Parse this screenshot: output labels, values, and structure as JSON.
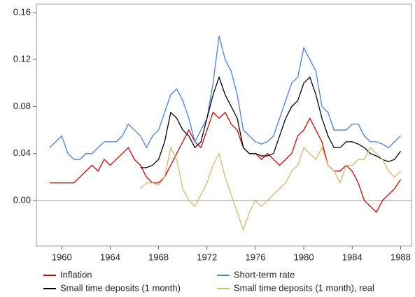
{
  "chart_data": {
    "type": "line",
    "x": [
      1959,
      1959.5,
      1960,
      1960.5,
      1961,
      1961.5,
      1962,
      1962.5,
      1963,
      1963.5,
      1964,
      1964.5,
      1965,
      1965.5,
      1966,
      1966.5,
      1967,
      1967.5,
      1968,
      1968.5,
      1969,
      1969.5,
      1970,
      1970.5,
      1971,
      1971.5,
      1972,
      1972.5,
      1973,
      1973.5,
      1974,
      1974.5,
      1975,
      1975.5,
      1976,
      1976.5,
      1977,
      1977.5,
      1978,
      1978.5,
      1979,
      1979.5,
      1980,
      1980.5,
      1981,
      1981.5,
      1982,
      1982.5,
      1983,
      1983.5,
      1984,
      1984.5,
      1985,
      1985.5,
      1986,
      1986.5,
      1987,
      1987.5,
      1988
    ],
    "series": [
      {
        "name": "Inflation",
        "color": "#cc0000",
        "values": [
          0.015,
          0.015,
          0.015,
          0.015,
          0.015,
          0.02,
          0.025,
          0.03,
          0.025,
          0.035,
          0.03,
          0.035,
          0.04,
          0.045,
          0.035,
          0.03,
          0.02,
          0.015,
          0.015,
          0.02,
          0.03,
          0.04,
          0.05,
          0.06,
          0.05,
          0.045,
          0.06,
          0.075,
          0.07,
          0.075,
          0.065,
          0.06,
          0.045,
          0.04,
          0.04,
          0.035,
          0.04,
          0.035,
          0.03,
          0.035,
          0.04,
          0.055,
          0.06,
          0.07,
          0.06,
          0.05,
          0.03,
          0.025,
          0.025,
          0.03,
          0.025,
          0.015,
          0.0,
          -0.005,
          -0.01,
          0.0,
          0.005,
          0.01,
          0.018
        ]
      },
      {
        "name": "Short-term rate",
        "color": "#4a7fe0",
        "values": [
          0.045,
          0.05,
          0.055,
          0.04,
          0.035,
          0.035,
          0.04,
          0.04,
          0.045,
          0.05,
          0.05,
          0.05,
          0.055,
          0.065,
          0.06,
          0.055,
          0.045,
          0.055,
          0.06,
          0.075,
          0.09,
          0.095,
          0.085,
          0.07,
          0.05,
          0.06,
          0.07,
          0.1,
          0.14,
          0.12,
          0.11,
          0.09,
          0.06,
          0.055,
          0.05,
          0.048,
          0.05,
          0.055,
          0.07,
          0.085,
          0.1,
          0.105,
          0.13,
          0.12,
          0.11,
          0.08,
          0.075,
          0.06,
          0.06,
          0.06,
          0.065,
          0.065,
          0.055,
          0.05,
          0.05,
          0.048,
          0.045,
          0.05,
          0.055
        ]
      },
      {
        "name": "Small time deposits (1 month)",
        "color": "#000000",
        "values": [
          null,
          null,
          null,
          null,
          null,
          null,
          null,
          null,
          null,
          null,
          null,
          null,
          null,
          null,
          null,
          0.028,
          0.028,
          0.03,
          0.035,
          0.05,
          0.075,
          0.07,
          0.06,
          0.055,
          0.045,
          0.05,
          0.07,
          0.09,
          0.105,
          0.09,
          0.08,
          0.07,
          0.045,
          0.04,
          0.04,
          0.038,
          0.038,
          0.04,
          0.055,
          0.07,
          0.08,
          0.085,
          0.1,
          0.105,
          0.09,
          0.07,
          0.055,
          0.045,
          0.045,
          0.05,
          0.05,
          0.048,
          0.045,
          0.04,
          0.038,
          0.035,
          0.033,
          0.035,
          0.042
        ]
      },
      {
        "name": "Small time deposits (1 month), real",
        "color": "#d9b86a",
        "values": [
          null,
          null,
          null,
          null,
          null,
          null,
          null,
          null,
          null,
          null,
          null,
          null,
          null,
          null,
          null,
          0.01,
          0.015,
          0.015,
          0.013,
          0.02,
          0.045,
          0.035,
          0.01,
          0.0,
          -0.005,
          0.005,
          0.015,
          0.03,
          0.04,
          0.02,
          0.005,
          -0.01,
          -0.025,
          -0.01,
          0.0,
          -0.005,
          0.0,
          0.005,
          0.01,
          0.015,
          0.025,
          0.03,
          0.045,
          0.04,
          0.035,
          0.045,
          0.03,
          0.025,
          0.015,
          0.03,
          0.03,
          0.035,
          0.035,
          0.045,
          0.04,
          0.035,
          0.025,
          0.02,
          0.025
        ]
      }
    ],
    "xlim": [
      1957.9,
      1988.9
    ],
    "xticks": [
      1960,
      1964,
      1968,
      1972,
      1976,
      1980,
      1984,
      1988
    ],
    "ylim": [
      -0.0387,
      0.1671
    ],
    "yticks": [
      {
        "value": 0,
        "label": "0.00"
      },
      0.04,
      0.08,
      0.12,
      0.16
    ],
    "zero_line": true,
    "legend": "bottom"
  }
}
